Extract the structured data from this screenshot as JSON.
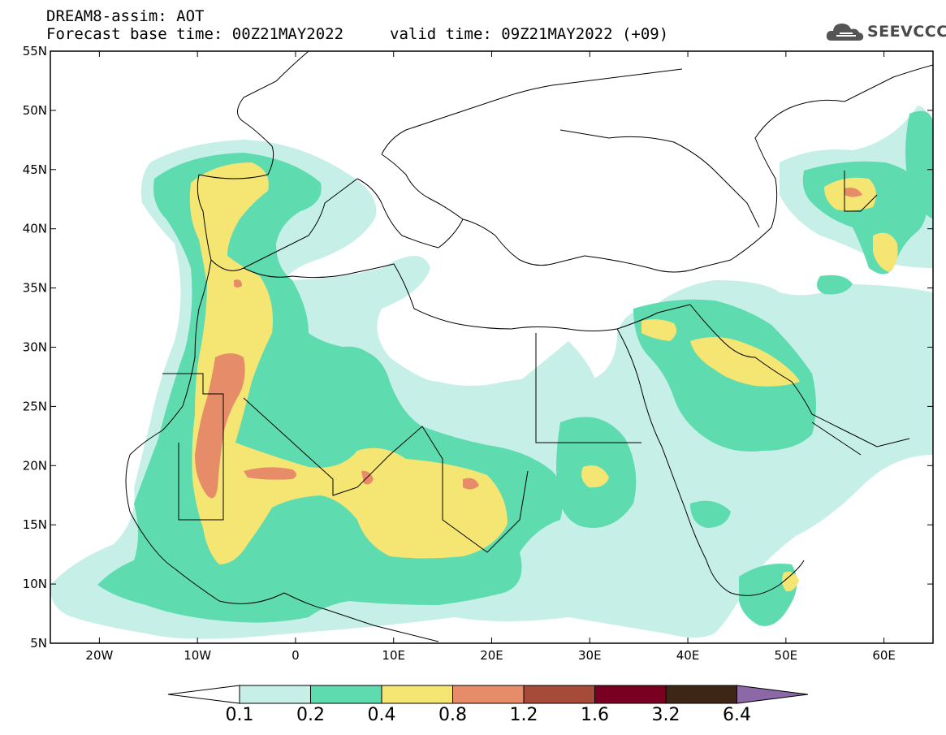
{
  "header": {
    "title": "DREAM8-assim: AOT",
    "base_time": "Forecast base time: 00Z21MAY2022",
    "valid_time": "valid time: 09Z21MAY2022 (+09)"
  },
  "logo": {
    "text": "SEEVCCC",
    "icon": "cloud-icon"
  },
  "map": {
    "lat_labels": [
      "55N",
      "50N",
      "45N",
      "40N",
      "35N",
      "30N",
      "25N",
      "20N",
      "15N",
      "10N",
      "5N"
    ],
    "lon_labels": [
      "20W",
      "10W",
      "0",
      "10E",
      "20E",
      "30E",
      "40E",
      "50E",
      "60E"
    ],
    "lon_range": [
      -25,
      65
    ],
    "lat_range": [
      5,
      55
    ]
  },
  "colorbar": {
    "ticks": [
      "0.1",
      "0.2",
      "0.4",
      "0.8",
      "1.2",
      "1.6",
      "3.2",
      "6.4"
    ],
    "colors": {
      "under": "#ffffff",
      "c1": "#c6efe8",
      "c2": "#5edcb0",
      "c3": "#f5e573",
      "c4": "#e78c68",
      "c5": "#a64a3a",
      "c6": "#7a0022",
      "c7": "#3d2616",
      "over": "#8d68a7"
    }
  }
}
